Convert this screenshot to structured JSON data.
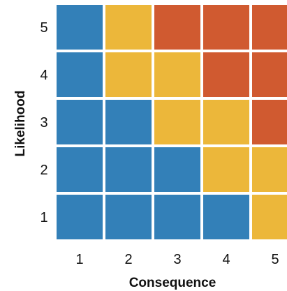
{
  "chart_data": {
    "type": "heatmap",
    "title": "",
    "xlabel": "Consequence",
    "ylabel": "Likelihood",
    "x_categories": [
      "1",
      "2",
      "3",
      "4",
      "5"
    ],
    "y_categories": [
      "1",
      "2",
      "3",
      "4",
      "5"
    ],
    "risk_levels": [
      "low",
      "medium",
      "high"
    ],
    "colors": {
      "low": "#3380b8",
      "medium": "#ecb73a",
      "high": "#d05a30",
      "gap": "#ffffff"
    },
    "grid": [
      {
        "likelihood": "5",
        "levels": [
          "low",
          "medium",
          "high",
          "high",
          "high"
        ]
      },
      {
        "likelihood": "4",
        "levels": [
          "low",
          "medium",
          "medium",
          "high",
          "high"
        ]
      },
      {
        "likelihood": "3",
        "levels": [
          "low",
          "low",
          "medium",
          "medium",
          "high"
        ]
      },
      {
        "likelihood": "2",
        "levels": [
          "low",
          "low",
          "low",
          "medium",
          "medium"
        ]
      },
      {
        "likelihood": "1",
        "levels": [
          "low",
          "low",
          "low",
          "low",
          "medium"
        ]
      }
    ]
  }
}
